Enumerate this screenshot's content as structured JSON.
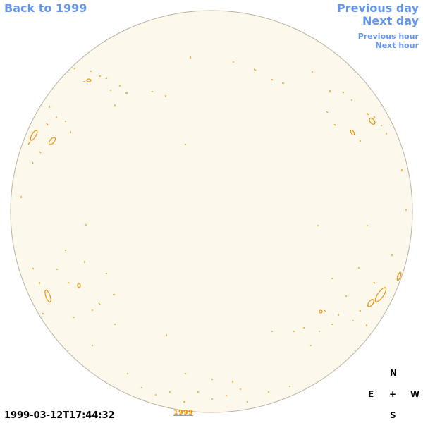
{
  "nav": {
    "back": "Back to 1999",
    "prev_day": "Previous day",
    "next_day": "Next day",
    "prev_hour": "Previous hour",
    "next_hour": "Next hour"
  },
  "compass": {
    "north": "N",
    "east": "E",
    "center": "+",
    "west": "W",
    "south": "S"
  },
  "timestamp": "1999-03-12T17:44:32",
  "year_link": "1999"
}
